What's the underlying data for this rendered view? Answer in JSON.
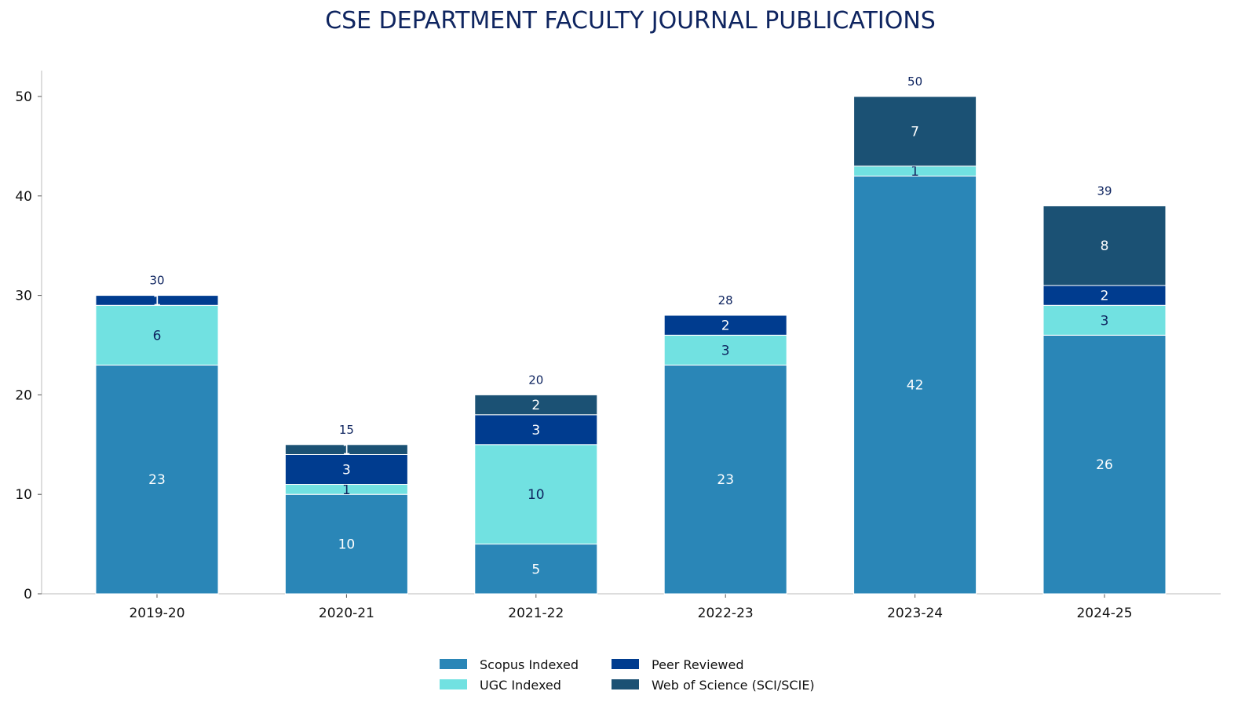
{
  "chart_data": {
    "type": "bar",
    "stacked": true,
    "title": "CSE DEPARTMENT FACULTY JOURNAL PUBLICATIONS",
    "xlabel": "",
    "ylabel": "",
    "categories": [
      "2019-20",
      "2020-21",
      "2021-22",
      "2022-23",
      "2023-24",
      "2024-25"
    ],
    "series": [
      {
        "name": "Scopus Indexed",
        "color": "#2a86b7",
        "label_color": "#ffffff",
        "values": [
          23,
          10,
          5,
          23,
          42,
          26
        ]
      },
      {
        "name": "UGC Indexed",
        "color": "#71e1e1",
        "label_color": "#0f2560",
        "values": [
          6,
          1,
          10,
          3,
          1,
          3
        ]
      },
      {
        "name": "Peer Reviewed",
        "color": "#003c8f",
        "label_color": "#ffffff",
        "values": [
          1,
          3,
          3,
          2,
          0,
          2
        ]
      },
      {
        "name": "Web of Science (SCI/SCIE)",
        "color": "#1b5174",
        "label_color": "#ffffff",
        "values": [
          0,
          1,
          2,
          0,
          7,
          8
        ]
      }
    ],
    "totals": [
      30,
      15,
      20,
      28,
      50,
      39
    ],
    "ylim": [
      0,
      52
    ],
    "yticks": [
      0,
      10,
      20,
      30,
      40,
      50
    ],
    "grid": false,
    "legend_position": "bottom-center",
    "title_color": "#0f2560"
  }
}
